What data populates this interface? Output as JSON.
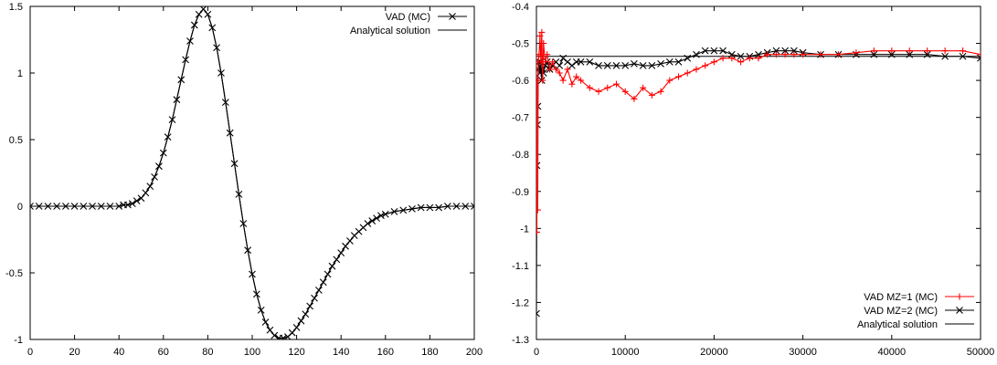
{
  "chart_data": [
    {
      "type": "line",
      "xlim": [
        0,
        200
      ],
      "ylim": [
        -1,
        1.5
      ],
      "x_ticks": [
        0,
        20,
        40,
        60,
        80,
        100,
        120,
        140,
        160,
        180,
        200
      ],
      "y_ticks": [
        -1,
        -0.5,
        0,
        0.5,
        1,
        1.5
      ],
      "x_tick_labels": [
        "0",
        "20",
        "40",
        "60",
        "80",
        "100",
        "120",
        "140",
        "160",
        "180",
        "200"
      ],
      "y_tick_labels": [
        "-1",
        "-0.5",
        "0",
        "0.5",
        "1",
        "1.5"
      ],
      "legend_position": "top-right",
      "grid": false,
      "series": [
        {
          "name": "VAD (MC)",
          "marker": "x",
          "color": "#000000",
          "x": [
            0,
            4,
            8,
            12,
            16,
            20,
            24,
            28,
            32,
            36,
            40,
            42,
            44,
            46,
            48,
            50,
            52,
            54,
            56,
            58,
            60,
            62,
            64,
            66,
            68,
            70,
            72,
            74,
            76,
            78,
            80,
            82,
            84,
            86,
            88,
            90,
            92,
            94,
            96,
            98,
            100,
            102,
            104,
            106,
            108,
            110,
            112,
            114,
            116,
            118,
            120,
            122,
            124,
            126,
            128,
            130,
            132,
            134,
            136,
            138,
            140,
            142,
            144,
            146,
            148,
            150,
            152,
            154,
            156,
            158,
            160,
            164,
            168,
            172,
            176,
            180,
            184,
            188,
            192,
            196,
            200
          ],
          "y": [
            0.0,
            0.0,
            0.0,
            0.0,
            0.0,
            0.0,
            0.0,
            0.0,
            0.0,
            0.0,
            0.0,
            0.01,
            0.01,
            0.02,
            0.04,
            0.06,
            0.1,
            0.15,
            0.22,
            0.3,
            0.4,
            0.52,
            0.65,
            0.8,
            0.95,
            1.1,
            1.24,
            1.36,
            1.44,
            1.48,
            1.44,
            1.34,
            1.19,
            1.0,
            0.78,
            0.55,
            0.32,
            0.09,
            -0.13,
            -0.33,
            -0.51,
            -0.66,
            -0.78,
            -0.87,
            -0.93,
            -0.97,
            -0.99,
            -0.99,
            -0.98,
            -0.95,
            -0.91,
            -0.86,
            -0.81,
            -0.75,
            -0.69,
            -0.63,
            -0.57,
            -0.51,
            -0.45,
            -0.4,
            -0.35,
            -0.3,
            -0.26,
            -0.22,
            -0.19,
            -0.16,
            -0.13,
            -0.11,
            -0.09,
            -0.07,
            -0.06,
            -0.04,
            -0.03,
            -0.02,
            -0.01,
            -0.01,
            -0.01,
            0.0,
            0.0,
            0.0,
            0.0
          ]
        },
        {
          "name": "Analytical solution",
          "marker": "none",
          "color": "#000000",
          "x": [
            0,
            4,
            8,
            12,
            16,
            20,
            24,
            28,
            32,
            36,
            40,
            42,
            44,
            46,
            48,
            50,
            52,
            54,
            56,
            58,
            60,
            62,
            64,
            66,
            68,
            70,
            72,
            74,
            76,
            78,
            80,
            82,
            84,
            86,
            88,
            90,
            92,
            94,
            96,
            98,
            100,
            102,
            104,
            106,
            108,
            110,
            112,
            114,
            116,
            118,
            120,
            122,
            124,
            126,
            128,
            130,
            132,
            134,
            136,
            138,
            140,
            142,
            144,
            146,
            148,
            150,
            152,
            154,
            156,
            158,
            160,
            164,
            168,
            172,
            176,
            180,
            184,
            188,
            192,
            196,
            200
          ],
          "y": [
            0.0,
            0.0,
            0.0,
            0.0,
            0.0,
            0.0,
            0.0,
            0.0,
            0.0,
            0.0,
            0.0,
            0.01,
            0.01,
            0.02,
            0.04,
            0.06,
            0.1,
            0.15,
            0.22,
            0.3,
            0.4,
            0.52,
            0.65,
            0.8,
            0.95,
            1.1,
            1.24,
            1.36,
            1.44,
            1.48,
            1.44,
            1.34,
            1.19,
            1.0,
            0.78,
            0.55,
            0.32,
            0.09,
            -0.13,
            -0.33,
            -0.51,
            -0.66,
            -0.78,
            -0.87,
            -0.93,
            -0.97,
            -0.99,
            -0.99,
            -0.98,
            -0.95,
            -0.91,
            -0.86,
            -0.81,
            -0.75,
            -0.69,
            -0.63,
            -0.57,
            -0.51,
            -0.45,
            -0.4,
            -0.35,
            -0.3,
            -0.26,
            -0.22,
            -0.19,
            -0.16,
            -0.13,
            -0.11,
            -0.09,
            -0.07,
            -0.06,
            -0.04,
            -0.03,
            -0.02,
            -0.01,
            -0.01,
            -0.01,
            0.0,
            0.0,
            0.0,
            0.0
          ]
        }
      ]
    },
    {
      "type": "line",
      "xlim": [
        0,
        50000
      ],
      "ylim": [
        -1.3,
        -0.4
      ],
      "x_ticks": [
        0,
        10000,
        20000,
        30000,
        40000,
        50000
      ],
      "y_ticks": [
        -1.3,
        -1.2,
        -1.1,
        -1,
        -0.9,
        -0.8,
        -0.7,
        -0.6,
        -0.5,
        -0.4
      ],
      "x_tick_labels": [
        "0",
        "10000",
        "20000",
        "30000",
        "40000",
        "50000"
      ],
      "y_tick_labels": [
        "-1.3",
        "-1.2",
        "-1.1",
        "-1",
        "-0.9",
        "-0.8",
        "-0.7",
        "-0.6",
        "-0.5",
        "-0.4"
      ],
      "legend_position": "bottom-right",
      "grid": false,
      "series": [
        {
          "name": "VAD MZ=1 (MC)",
          "marker": "+",
          "color": "#ff0000",
          "x": [
            0,
            50,
            100,
            150,
            200,
            300,
            400,
            500,
            600,
            700,
            800,
            1000,
            1200,
            1500,
            1800,
            2200,
            2600,
            3000,
            3500,
            4000,
            4500,
            5000,
            6000,
            7000,
            8000,
            9000,
            10000,
            11000,
            12000,
            13000,
            14000,
            15000,
            16000,
            17000,
            18000,
            19000,
            20000,
            21000,
            22000,
            23000,
            24000,
            25000,
            26000,
            27000,
            28000,
            29000,
            30000,
            32000,
            34000,
            36000,
            38000,
            40000,
            42000,
            44000,
            46000,
            48000,
            50000
          ],
          "y": [
            -0.53,
            -1.01,
            -0.6,
            -0.95,
            -0.55,
            -0.53,
            -0.48,
            -0.55,
            -0.47,
            -0.6,
            -0.5,
            -0.55,
            -0.53,
            -0.57,
            -0.55,
            -0.57,
            -0.58,
            -0.6,
            -0.57,
            -0.61,
            -0.59,
            -0.6,
            -0.62,
            -0.63,
            -0.62,
            -0.61,
            -0.63,
            -0.65,
            -0.62,
            -0.64,
            -0.63,
            -0.6,
            -0.59,
            -0.58,
            -0.57,
            -0.56,
            -0.55,
            -0.54,
            -0.54,
            -0.55,
            -0.54,
            -0.54,
            -0.53,
            -0.53,
            -0.53,
            -0.53,
            -0.53,
            -0.53,
            -0.53,
            -0.525,
            -0.52,
            -0.52,
            -0.52,
            -0.52,
            -0.52,
            -0.52,
            -0.53
          ]
        },
        {
          "name": "VAD MZ=2 (MC)",
          "marker": "x",
          "color": "#000000",
          "x": [
            0,
            50,
            100,
            150,
            200,
            300,
            400,
            500,
            600,
            700,
            800,
            1000,
            1200,
            1500,
            1800,
            2200,
            2600,
            3000,
            3500,
            4000,
            4500,
            5000,
            6000,
            7000,
            8000,
            9000,
            10000,
            11000,
            12000,
            13000,
            14000,
            15000,
            16000,
            17000,
            18000,
            19000,
            20000,
            21000,
            22000,
            23000,
            24000,
            25000,
            26000,
            27000,
            28000,
            29000,
            30000,
            32000,
            34000,
            36000,
            38000,
            40000,
            42000,
            44000,
            46000,
            48000,
            50000
          ],
          "y": [
            -1.23,
            -0.83,
            -0.72,
            -0.67,
            -0.57,
            -0.55,
            -0.58,
            -0.55,
            -0.6,
            -0.57,
            -0.58,
            -0.56,
            -0.55,
            -0.57,
            -0.56,
            -0.55,
            -0.56,
            -0.54,
            -0.55,
            -0.56,
            -0.55,
            -0.55,
            -0.55,
            -0.56,
            -0.56,
            -0.56,
            -0.56,
            -0.555,
            -0.56,
            -0.56,
            -0.555,
            -0.55,
            -0.55,
            -0.54,
            -0.53,
            -0.52,
            -0.52,
            -0.52,
            -0.53,
            -0.535,
            -0.535,
            -0.53,
            -0.525,
            -0.52,
            -0.52,
            -0.52,
            -0.525,
            -0.53,
            -0.53,
            -0.53,
            -0.53,
            -0.53,
            -0.53,
            -0.53,
            -0.535,
            -0.535,
            -0.54
          ]
        },
        {
          "name": "Analytical solution",
          "marker": "none",
          "color": "#000000",
          "x": [
            0,
            50000
          ],
          "y": [
            -0.535,
            -0.535
          ]
        }
      ]
    }
  ]
}
